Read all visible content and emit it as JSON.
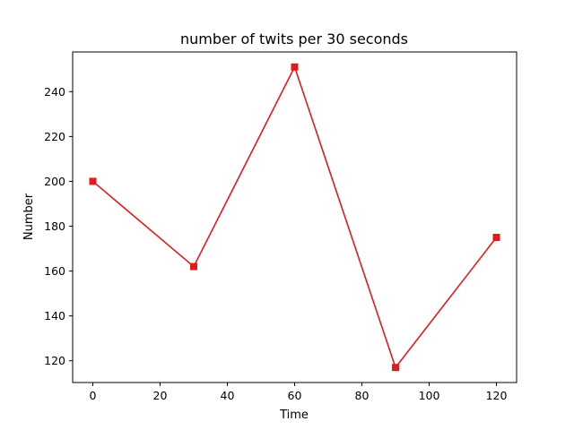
{
  "chart_data": {
    "type": "line",
    "title": "number of twits per 30 seconds",
    "xlabel": "Time",
    "ylabel": "Number",
    "x": [
      0,
      30,
      60,
      90,
      120
    ],
    "series": [
      {
        "name": "",
        "values": [
          200,
          162,
          251,
          117,
          175
        ],
        "color": "#e31a1c",
        "marker": "square"
      }
    ],
    "xlim": [
      -6,
      126
    ],
    "ylim": [
      110.3,
      257.7
    ],
    "xticks": [
      0,
      20,
      40,
      60,
      80,
      100,
      120
    ],
    "yticks": [
      120,
      140,
      160,
      180,
      200,
      220,
      240
    ],
    "grid": false,
    "legend": "none"
  }
}
